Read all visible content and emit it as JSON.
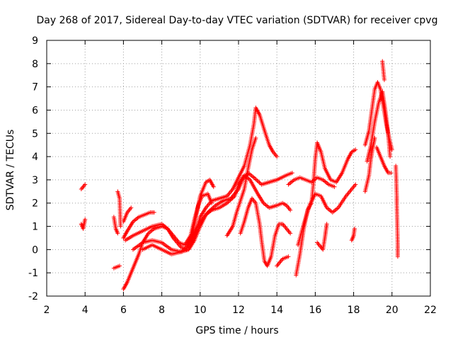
{
  "chart_data": {
    "type": "scatter",
    "title": "Day 268 of 2017, Sidereal Day-to-day VTEC variation (SDTVAR) for receiver cpvg",
    "xlabel": "GPS time / hours",
    "ylabel": "SDTVAR / TECUs",
    "xlim": [
      2,
      22
    ],
    "ylim": [
      -2,
      9
    ],
    "xticks": [
      2,
      4,
      6,
      8,
      10,
      12,
      14,
      16,
      18,
      20,
      22
    ],
    "yticks": [
      -2,
      -1,
      0,
      1,
      2,
      3,
      4,
      5,
      6,
      7,
      8,
      9
    ],
    "grid": true,
    "marker": "plus",
    "color": "#ff0000",
    "series": [
      {
        "name": "t1",
        "points": [
          [
            3.8,
            2.6
          ],
          [
            3.9,
            2.7
          ],
          [
            4.0,
            2.8
          ]
        ]
      },
      {
        "name": "t2",
        "points": [
          [
            3.8,
            1.1
          ],
          [
            3.9,
            0.9
          ],
          [
            4.0,
            1.3
          ]
        ]
      },
      {
        "name": "t3",
        "points": [
          [
            5.5,
            1.4
          ],
          [
            5.6,
            0.9
          ],
          [
            5.7,
            0.7
          ]
        ]
      },
      {
        "name": "t4",
        "points": [
          [
            5.7,
            2.5
          ],
          [
            5.8,
            2.2
          ],
          [
            5.85,
            1.0
          ]
        ]
      },
      {
        "name": "t5",
        "points": [
          [
            5.5,
            -0.8
          ],
          [
            5.8,
            -0.7
          ]
        ]
      },
      {
        "name": "t6",
        "points": [
          [
            6.0,
            -1.7
          ],
          [
            6.2,
            -1.4
          ],
          [
            6.4,
            -1.0
          ],
          [
            6.6,
            -0.6
          ],
          [
            6.8,
            -0.2
          ],
          [
            7.0,
            0.3
          ],
          [
            7.3,
            0.7
          ],
          [
            7.6,
            0.9
          ],
          [
            8.0,
            1.0
          ],
          [
            8.3,
            0.9
          ],
          [
            8.6,
            0.6
          ],
          [
            8.9,
            0.3
          ],
          [
            9.2,
            0.2
          ],
          [
            9.5,
            0.6
          ],
          [
            9.7,
            1.3
          ],
          [
            9.9,
            1.9
          ],
          [
            10.1,
            2.3
          ],
          [
            10.4,
            2.4
          ],
          [
            10.6,
            2.0
          ]
        ]
      },
      {
        "name": "t7",
        "points": [
          [
            6.0,
            0.5
          ],
          [
            6.2,
            0.8
          ],
          [
            6.5,
            1.2
          ],
          [
            6.8,
            1.4
          ],
          [
            7.1,
            1.5
          ],
          [
            7.4,
            1.6
          ],
          [
            7.6,
            1.6
          ]
        ]
      },
      {
        "name": "t8",
        "points": [
          [
            6.0,
            1.2
          ],
          [
            6.2,
            1.6
          ],
          [
            6.4,
            1.8
          ]
        ]
      },
      {
        "name": "t9",
        "points": [
          [
            6.1,
            0.4
          ],
          [
            6.5,
            0.6
          ],
          [
            7.0,
            0.8
          ],
          [
            7.5,
            1.0
          ],
          [
            8.0,
            1.1
          ],
          [
            8.3,
            0.9
          ],
          [
            8.6,
            0.5
          ],
          [
            9.0,
            0.1
          ],
          [
            9.3,
            0.0
          ],
          [
            9.6,
            0.7
          ],
          [
            9.8,
            1.5
          ],
          [
            10.0,
            2.3
          ],
          [
            10.3,
            2.9
          ],
          [
            10.5,
            3.0
          ],
          [
            10.7,
            2.7
          ]
        ]
      },
      {
        "name": "t10",
        "points": [
          [
            6.5,
            0.0
          ],
          [
            7.0,
            0.3
          ],
          [
            7.5,
            0.4
          ],
          [
            8.0,
            0.3
          ],
          [
            8.5,
            0.0
          ],
          [
            9.0,
            -0.1
          ],
          [
            9.4,
            0.0
          ],
          [
            9.7,
            0.4
          ],
          [
            10.0,
            1.0
          ],
          [
            10.3,
            1.5
          ],
          [
            10.6,
            1.7
          ],
          [
            11.0,
            1.8
          ],
          [
            11.4,
            2.0
          ],
          [
            11.8,
            2.3
          ],
          [
            12.0,
            2.8
          ],
          [
            12.3,
            3.2
          ],
          [
            12.6,
            3.0
          ],
          [
            13.0,
            2.4
          ],
          [
            13.3,
            2.0
          ],
          [
            13.6,
            1.8
          ],
          [
            14.0,
            1.9
          ],
          [
            14.3,
            2.0
          ],
          [
            14.5,
            1.9
          ],
          [
            14.7,
            1.7
          ]
        ]
      },
      {
        "name": "t11",
        "points": [
          [
            7.0,
            0.0
          ],
          [
            7.5,
            0.2
          ],
          [
            8.0,
            0.0
          ],
          [
            8.5,
            -0.2
          ],
          [
            9.0,
            -0.1
          ],
          [
            9.3,
            0.1
          ],
          [
            9.6,
            0.6
          ],
          [
            10.0,
            1.2
          ],
          [
            10.4,
            1.6
          ],
          [
            10.8,
            1.9
          ],
          [
            11.2,
            2.1
          ],
          [
            11.6,
            2.2
          ],
          [
            12.0,
            2.6
          ],
          [
            12.2,
            3.0
          ],
          [
            12.5,
            3.3
          ],
          [
            12.8,
            3.1
          ],
          [
            13.2,
            2.8
          ],
          [
            13.6,
            2.9
          ],
          [
            14.0,
            3.0
          ],
          [
            14.5,
            3.2
          ],
          [
            14.8,
            3.3
          ]
        ]
      },
      {
        "name": "t12",
        "points": [
          [
            9.5,
            0.2
          ],
          [
            9.8,
            0.8
          ],
          [
            10.0,
            1.4
          ],
          [
            10.3,
            1.8
          ],
          [
            10.6,
            2.1
          ],
          [
            11.0,
            2.2
          ],
          [
            11.4,
            2.3
          ],
          [
            11.7,
            2.6
          ],
          [
            12.0,
            3.1
          ],
          [
            12.3,
            3.6
          ],
          [
            12.6,
            4.5
          ],
          [
            12.8,
            5.4
          ],
          [
            12.9,
            6.1
          ],
          [
            13.1,
            5.8
          ],
          [
            13.4,
            5.0
          ],
          [
            13.6,
            4.5
          ],
          [
            13.8,
            4.2
          ],
          [
            14.0,
            4.0
          ]
        ]
      },
      {
        "name": "t13",
        "points": [
          [
            11.4,
            0.6
          ],
          [
            11.7,
            1.0
          ],
          [
            11.9,
            1.6
          ],
          [
            12.1,
            2.1
          ],
          [
            12.3,
            2.6
          ],
          [
            12.5,
            3.5
          ],
          [
            12.7,
            4.3
          ],
          [
            12.9,
            4.8
          ]
        ]
      },
      {
        "name": "t14",
        "points": [
          [
            12.1,
            0.7
          ],
          [
            12.3,
            1.2
          ],
          [
            12.5,
            1.8
          ],
          [
            12.7,
            2.2
          ],
          [
            12.9,
            2.0
          ],
          [
            13.1,
            1.1
          ],
          [
            13.2,
            0.4
          ],
          [
            13.35,
            -0.5
          ],
          [
            13.5,
            -0.7
          ],
          [
            13.7,
            -0.3
          ],
          [
            13.9,
            0.6
          ],
          [
            14.1,
            1.1
          ],
          [
            14.3,
            1.1
          ],
          [
            14.5,
            0.9
          ],
          [
            14.7,
            0.7
          ]
        ]
      },
      {
        "name": "t15",
        "points": [
          [
            14.0,
            -0.7
          ],
          [
            14.3,
            -0.4
          ],
          [
            14.6,
            -0.3
          ]
        ]
      },
      {
        "name": "t16",
        "points": [
          [
            15.0,
            -1.1
          ],
          [
            15.2,
            -0.2
          ],
          [
            15.4,
            0.9
          ],
          [
            15.6,
            1.7
          ],
          [
            15.8,
            2.0
          ],
          [
            15.9,
            2.8
          ],
          [
            16.0,
            3.9
          ],
          [
            16.1,
            4.6
          ],
          [
            16.3,
            4.2
          ],
          [
            16.5,
            3.5
          ],
          [
            16.8,
            3.0
          ],
          [
            17.1,
            2.9
          ],
          [
            17.4,
            3.3
          ],
          [
            17.7,
            3.9
          ],
          [
            17.9,
            4.2
          ],
          [
            18.1,
            4.3
          ]
        ]
      },
      {
        "name": "t17",
        "points": [
          [
            15.1,
            0.2
          ],
          [
            15.4,
            1.1
          ],
          [
            15.7,
            1.9
          ],
          [
            16.0,
            2.4
          ],
          [
            16.3,
            2.3
          ],
          [
            16.6,
            1.8
          ],
          [
            16.9,
            1.6
          ],
          [
            17.2,
            1.8
          ],
          [
            17.6,
            2.3
          ],
          [
            17.9,
            2.6
          ],
          [
            18.1,
            2.8
          ]
        ]
      },
      {
        "name": "t18",
        "points": [
          [
            14.6,
            2.8
          ],
          [
            14.9,
            3.0
          ],
          [
            15.2,
            3.1
          ],
          [
            15.5,
            3.0
          ],
          [
            15.8,
            2.9
          ],
          [
            16.1,
            3.1
          ],
          [
            16.4,
            3.0
          ],
          [
            16.7,
            2.8
          ],
          [
            17.0,
            2.7
          ]
        ]
      },
      {
        "name": "t19",
        "points": [
          [
            16.1,
            0.3
          ],
          [
            16.3,
            0.1
          ],
          [
            16.4,
            0.0
          ],
          [
            16.5,
            0.5
          ],
          [
            16.6,
            1.1
          ]
        ]
      },
      {
        "name": "t20",
        "points": [
          [
            17.9,
            0.4
          ],
          [
            18.0,
            0.6
          ],
          [
            18.05,
            0.9
          ]
        ]
      },
      {
        "name": "t21",
        "points": [
          [
            18.6,
            4.5
          ],
          [
            18.8,
            5.1
          ],
          [
            18.95,
            6.0
          ],
          [
            19.1,
            6.9
          ],
          [
            19.25,
            7.2
          ],
          [
            19.4,
            6.9
          ],
          [
            19.55,
            6.2
          ],
          [
            19.7,
            5.4
          ],
          [
            19.85,
            4.8
          ],
          [
            20.0,
            4.3
          ]
        ]
      },
      {
        "name": "t22",
        "points": [
          [
            18.6,
            2.5
          ],
          [
            18.8,
            3.2
          ],
          [
            18.9,
            3.9
          ],
          [
            19.0,
            4.4
          ],
          [
            19.1,
            4.8
          ]
        ]
      },
      {
        "name": "t23",
        "points": [
          [
            18.7,
            3.8
          ],
          [
            18.9,
            4.5
          ],
          [
            19.1,
            5.5
          ],
          [
            19.3,
            6.3
          ],
          [
            19.5,
            6.8
          ],
          [
            19.65,
            6.0
          ],
          [
            19.8,
            5.0
          ],
          [
            19.9,
            4.0
          ]
        ]
      },
      {
        "name": "t24",
        "points": [
          [
            19.2,
            4.4
          ],
          [
            19.4,
            4.0
          ],
          [
            19.6,
            3.6
          ],
          [
            19.8,
            3.3
          ],
          [
            19.95,
            3.3
          ]
        ]
      },
      {
        "name": "t25",
        "points": [
          [
            19.5,
            8.1
          ],
          [
            19.55,
            7.7
          ],
          [
            19.6,
            7.3
          ]
        ]
      },
      {
        "name": "t26",
        "points": [
          [
            20.2,
            3.6
          ],
          [
            20.25,
            2.3
          ],
          [
            20.25,
            2.0
          ],
          [
            20.3,
            0.2
          ],
          [
            20.3,
            -0.3
          ]
        ]
      }
    ]
  }
}
